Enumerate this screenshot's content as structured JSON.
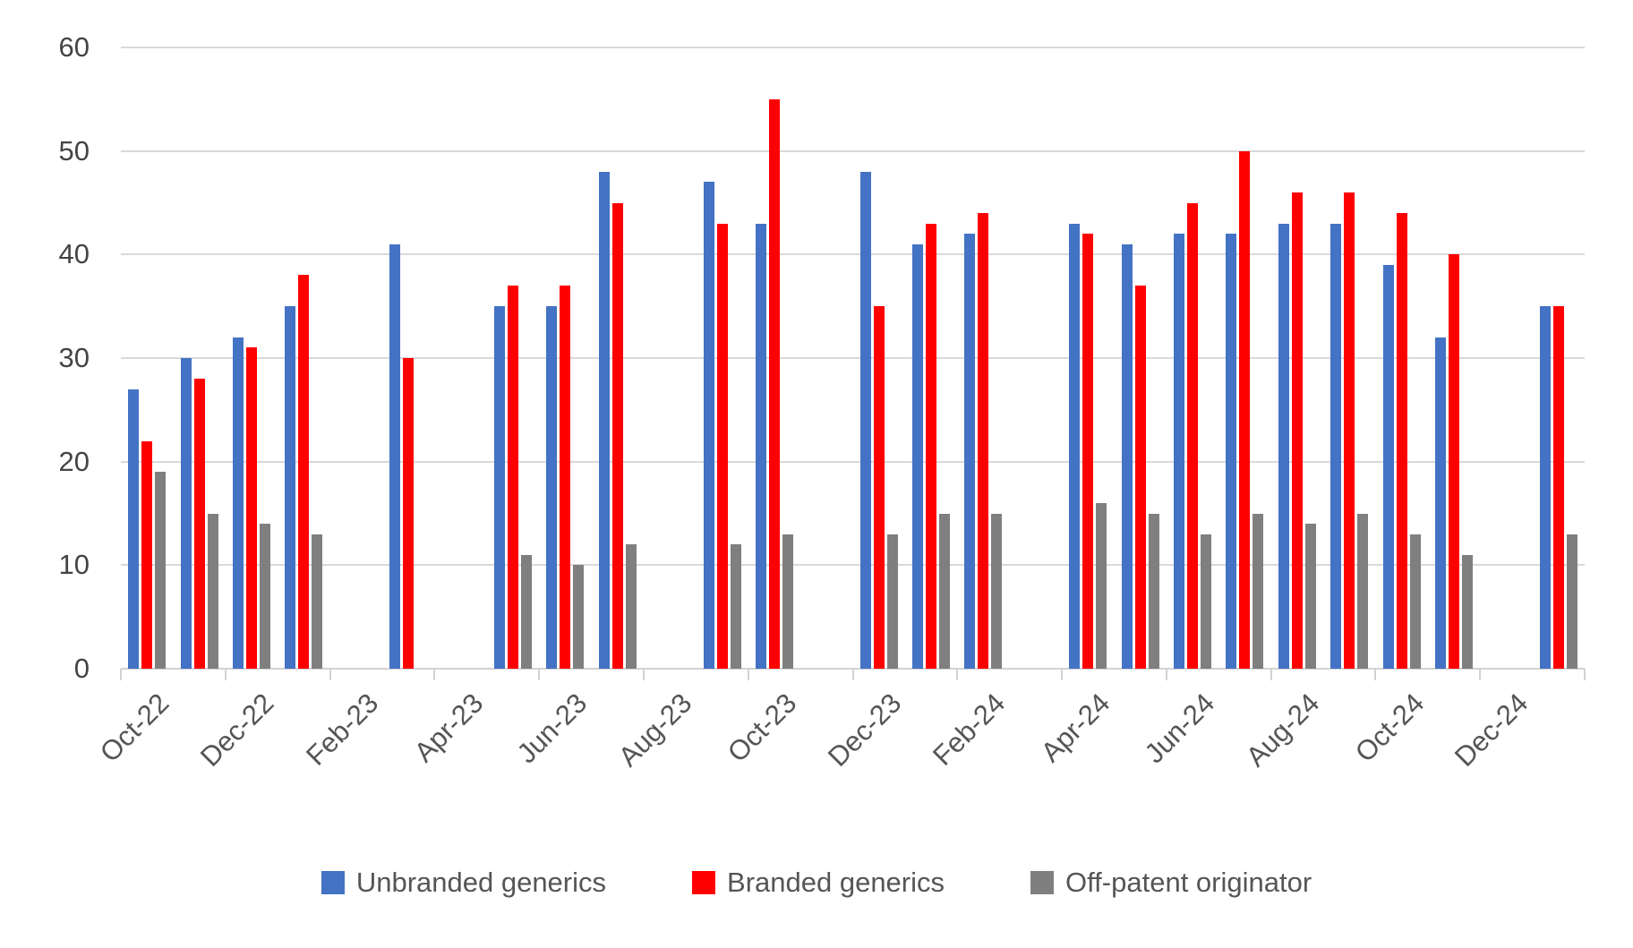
{
  "chart_data": {
    "type": "bar",
    "title": "",
    "xlabel": "",
    "ylabel": "",
    "ylim": [
      0,
      60
    ],
    "y_ticks": [
      0,
      10,
      20,
      30,
      40,
      50,
      60
    ],
    "grid": true,
    "legend_position": "bottom",
    "categories": [
      "Oct-22",
      "Nov-22",
      "Dec-22",
      "Jan-23",
      "Feb-23",
      "Mar-23",
      "Apr-23",
      "May-23",
      "Jun-23",
      "Jul-23",
      "Aug-23",
      "Sep-23",
      "Oct-23",
      "Nov-23",
      "Dec-23",
      "Jan-24",
      "Feb-24",
      "Mar-24",
      "Apr-24",
      "May-24",
      "Jun-24",
      "Jul-24",
      "Aug-24",
      "Sep-24",
      "Oct-24",
      "Nov-24",
      "Dec-24",
      "Jan-25"
    ],
    "x_tick_labels": [
      "Oct-22",
      "Dec-22",
      "Feb-23",
      "Apr-23",
      "Jun-23",
      "Aug-23",
      "Oct-23",
      "Dec-23",
      "Feb-24",
      "Apr-24",
      "Jun-24",
      "Aug-24",
      "Oct-24",
      "Dec-24"
    ],
    "series": [
      {
        "name": "Unbranded generics",
        "color": "#4472C4",
        "values": [
          27,
          30,
          32,
          35,
          null,
          41,
          null,
          35,
          35,
          48,
          null,
          47,
          43,
          null,
          48,
          41,
          42,
          null,
          43,
          41,
          42,
          42,
          43,
          43,
          39,
          32,
          null,
          35
        ]
      },
      {
        "name": "Branded generics",
        "color": "#FF0000",
        "values": [
          22,
          28,
          31,
          38,
          null,
          30,
          null,
          37,
          37,
          45,
          null,
          43,
          55,
          null,
          35,
          43,
          44,
          null,
          42,
          37,
          45,
          50,
          46,
          46,
          44,
          40,
          null,
          35
        ]
      },
      {
        "name": "Off-patent originator",
        "color": "#7F7F7F",
        "values": [
          19,
          15,
          14,
          13,
          null,
          null,
          null,
          11,
          10,
          12,
          null,
          12,
          13,
          null,
          13,
          15,
          15,
          null,
          16,
          15,
          13,
          15,
          14,
          15,
          13,
          11,
          null,
          13
        ]
      }
    ],
    "axis_colors": {
      "gridline": "#d9d9d9",
      "y_tick_text": "#444444",
      "x_tick_text": "#555555"
    }
  }
}
